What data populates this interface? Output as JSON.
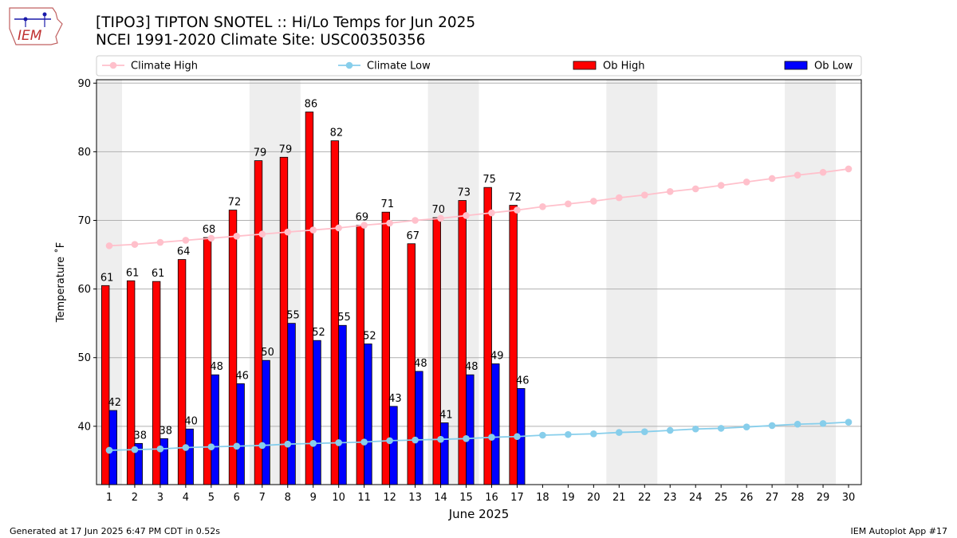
{
  "header": {
    "logo_text": "IEM",
    "title_line1": "[TIPO3] TIPTON SNOTEL :: Hi/Lo Temps for Jun 2025",
    "title_line2": "NCEI 1991-2020 Climate Site: USC00350356"
  },
  "footer": {
    "generated": "Generated at 17 Jun 2025 6:47 PM CDT in 0.52s",
    "app": "IEM Autoplot App #17"
  },
  "chart_data": {
    "type": "bar",
    "xlabel": "June 2025",
    "ylabel": "Temperature ˚F",
    "ylim": [
      31.5,
      90.5
    ],
    "yticks": [
      40,
      50,
      60,
      70,
      80,
      90
    ],
    "grid": "horizontal",
    "legend_position": "top",
    "days": [
      1,
      2,
      3,
      4,
      5,
      6,
      7,
      8,
      9,
      10,
      11,
      12,
      13,
      14,
      15,
      16,
      17,
      18,
      19,
      20,
      21,
      22,
      23,
      24,
      25,
      26,
      27,
      28,
      29,
      30
    ],
    "weekend_shading": [
      [
        1,
        1
      ],
      [
        7,
        8
      ],
      [
        14,
        15
      ],
      [
        21,
        22
      ],
      [
        28,
        29
      ]
    ],
    "series": [
      {
        "name": "Climate High",
        "kind": "line",
        "color": "#ffc0cb",
        "values": [
          66.3,
          66.5,
          66.8,
          67.1,
          67.4,
          67.7,
          68.0,
          68.3,
          68.6,
          68.9,
          69.3,
          69.6,
          70.0,
          70.3,
          70.7,
          71.1,
          71.5,
          72.0,
          72.4,
          72.8,
          73.3,
          73.7,
          74.2,
          74.6,
          75.1,
          75.6,
          76.1,
          76.6,
          77.0,
          77.5
        ]
      },
      {
        "name": "Climate Low",
        "kind": "line",
        "color": "#87ceeb",
        "values": [
          36.5,
          36.6,
          36.7,
          36.9,
          37.0,
          37.1,
          37.2,
          37.4,
          37.5,
          37.6,
          37.7,
          37.9,
          38.0,
          38.1,
          38.2,
          38.4,
          38.5,
          38.7,
          38.8,
          38.9,
          39.1,
          39.2,
          39.4,
          39.6,
          39.7,
          39.9,
          40.1,
          40.3,
          40.4,
          40.6
        ]
      },
      {
        "name": "Ob High",
        "kind": "bar",
        "color": "#ff0000",
        "values": [
          60.5,
          61.2,
          61.1,
          64.3,
          67.5,
          71.5,
          78.7,
          79.2,
          85.8,
          81.6,
          69.3,
          71.2,
          66.6,
          70.4,
          72.9,
          74.8,
          72.2
        ],
        "labels": [
          "61",
          "61",
          "61",
          "64",
          "68",
          "72",
          "79",
          "79",
          "86",
          "82",
          "69",
          "71",
          "67",
          "70",
          "73",
          "75",
          "72"
        ]
      },
      {
        "name": "Ob Low",
        "kind": "bar",
        "color": "#0000ff",
        "values": [
          42.3,
          37.5,
          38.2,
          39.6,
          47.5,
          46.2,
          49.6,
          55.0,
          52.5,
          54.7,
          52.0,
          42.9,
          48.0,
          40.5,
          47.5,
          49.1,
          45.5
        ],
        "labels": [
          "42",
          "38",
          "38",
          "40",
          "48",
          "46",
          "50",
          "55",
          "52",
          "55",
          "52",
          "43",
          "48",
          "41",
          "48",
          "49",
          "46"
        ]
      }
    ]
  }
}
